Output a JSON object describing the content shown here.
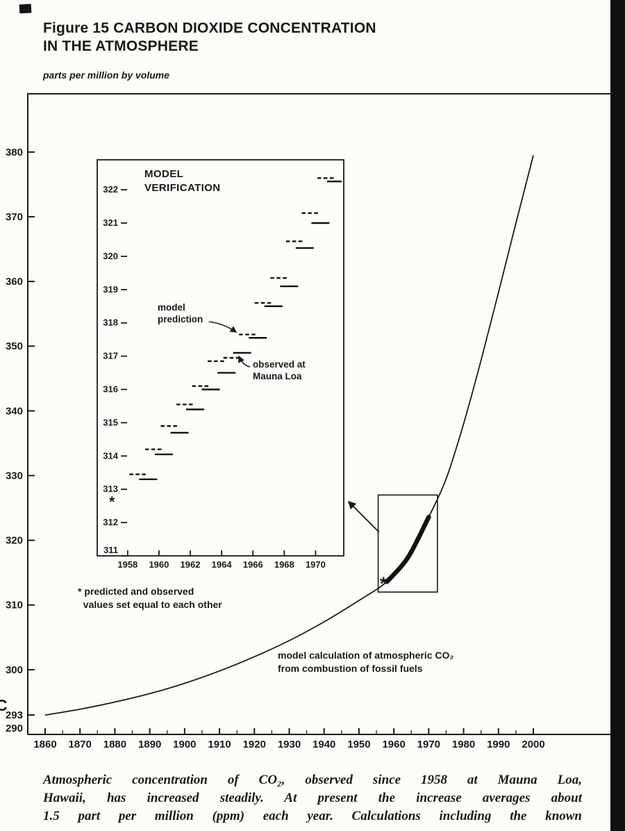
{
  "page": {
    "title_line1": "Figure 15 CARBON DIOXIDE CONCENTRATION",
    "title_line2": "IN THE ATMOSPHERE",
    "unit_label": "parts per million by volume",
    "left_edge_mark": "C",
    "caption_lines": [
      "Atmospheric concentration of CO₂, observed since 1958 at Mauna Loa,",
      "Hawaii, has increased steadily. At present the increase averages about",
      "1.5 part per million (ppm) each year. Calculations including the known"
    ],
    "colors": {
      "ink": "#1a1a1a",
      "paper": "#fcfcf9"
    }
  },
  "chart_data": [
    {
      "id": "main",
      "type": "line",
      "title": "CARBON DIOXIDE CONCENTRATION IN THE ATMOSPHERE",
      "xlabel": "",
      "ylabel": "parts per million by volume",
      "xlim": [
        1860,
        2000
      ],
      "ylim": [
        290,
        389
      ],
      "grid": false,
      "x_ticks": [
        1860,
        1870,
        1880,
        1890,
        1900,
        1910,
        1920,
        1930,
        1940,
        1950,
        1960,
        1970,
        1980,
        1990,
        2000
      ],
      "y_ticks": [
        380,
        370,
        360,
        350,
        340,
        330,
        320,
        310,
        300,
        293,
        290
      ],
      "series": [
        {
          "name": "model calculation of atmospheric CO₂ from combustion of fossil fuels",
          "style": "solid-thin",
          "x": [
            1860,
            1870,
            1880,
            1890,
            1900,
            1910,
            1920,
            1930,
            1940,
            1950,
            1958,
            1964,
            1970,
            1975,
            1980,
            1985,
            1990,
            1995,
            2000
          ],
          "y": [
            293.0,
            293.9,
            295.0,
            296.3,
            297.9,
            299.8,
            302.0,
            304.5,
            307.4,
            310.7,
            313.6,
            317.3,
            323.6,
            329.5,
            338.0,
            347.8,
            358.3,
            369.0,
            379.5
          ]
        },
        {
          "name": "observed period at Mauna Loa (thick overlap segment)",
          "style": "solid-thick",
          "x": [
            1958,
            1964,
            1970
          ],
          "y": [
            313.6,
            317.3,
            323.6
          ]
        }
      ],
      "start_marker": {
        "symbol": "*",
        "x": 1957,
        "y": 313.3
      },
      "zoom_box": {
        "year_range": [
          1955.5,
          1972.5
        ],
        "ppm_range": [
          312,
          327
        ]
      },
      "annotation": "model calculation of atmospheric CO₂\nfrom combustion of fossil fuels"
    },
    {
      "id": "inset",
      "type": "line",
      "title": "MODEL\nVERIFICATION",
      "xlim": [
        1956.5,
        1971.8
      ],
      "ylim": [
        311,
        322.9
      ],
      "grid": false,
      "x_ticks": [
        1958,
        1960,
        1962,
        1964,
        1966,
        1968,
        1970
      ],
      "y_ticks": [
        322,
        321,
        320,
        319,
        318,
        317,
        316,
        315,
        314,
        313,
        312,
        311
      ],
      "categories_years": [
        1959,
        1960,
        1961,
        1962,
        1963,
        1964,
        1965,
        1966,
        1967,
        1968,
        1969,
        1970,
        1971
      ],
      "series": [
        {
          "name": "model prediction",
          "style": "dashed",
          "values": [
            313.45,
            314.2,
            314.9,
            315.55,
            316.1,
            316.85,
            316.95,
            317.65,
            318.6,
            319.35,
            320.45,
            321.3,
            322.35
          ]
        },
        {
          "name": "observed at Mauna Loa",
          "style": "solid",
          "values": [
            313.3,
            314.05,
            314.7,
            315.4,
            316.0,
            316.5,
            317.1,
            317.55,
            318.5,
            319.1,
            320.25,
            321.0,
            322.25
          ]
        }
      ],
      "start_marker": {
        "symbol": "*",
        "x": 1957.0,
        "y": 312.65
      },
      "labels": {
        "model_prediction": "model\nprediction",
        "observed": "observed at\nMauna Loa",
        "footnote": "* predicted and observed\n  values set equal to each other"
      }
    }
  ]
}
